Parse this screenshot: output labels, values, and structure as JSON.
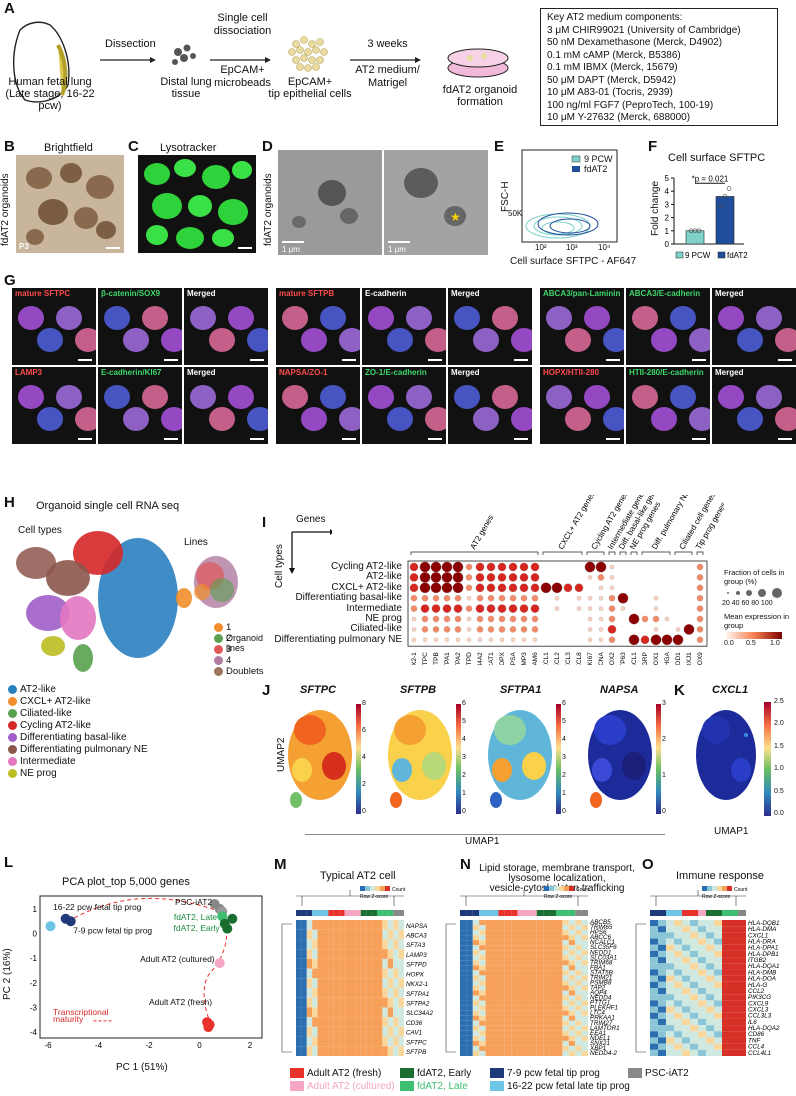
{
  "panels": {
    "A": "A",
    "B": "B",
    "C": "C",
    "D": "D",
    "E": "E",
    "F": "F",
    "G": "G",
    "H": "H",
    "I": "I",
    "J": "J",
    "K": "K",
    "L": "L",
    "M": "M",
    "N": "N",
    "O": "O"
  },
  "panelA": {
    "source_line1": "Human fetal lung",
    "source_line2": "(Late stage, 16-22 pcw)",
    "step1": "Dissection",
    "tissue": "Distal lung",
    "tissue2": "tissue",
    "step2_line1": "Single cell",
    "step2_line2": "dissociation",
    "step2_line3": "EpCAM+",
    "step2_line4": "microbeads",
    "cells_line1": "EpCAM+",
    "cells_line2": "tip epithelial cells",
    "step3_line1": "3 weeks",
    "step3_line2": "AT2 medium/",
    "step3_line3": "Matrigel",
    "result_line1": "fdAT2 organoid",
    "result_line2": "formation",
    "medium_title": "Key AT2 medium components:",
    "medium_items": [
      "3 μM CHIR99021 (University of Cambridge)",
      "50 nM Dexamethasone (Merck, D4902)",
      "0.1 mM cAMP (Merck, B5386)",
      "0.1 mM IBMX (Merck, 15679)",
      "50 μM DAPT (Merck, D5942)",
      "10 μM A83-01 (Tocris, 2939)",
      "100 ng/ml FGF7 (PeproTech, 100-19)",
      "10 μM Y-27632 (Merck, 688000)"
    ]
  },
  "panelB": {
    "title": "Brightfield",
    "ylabel": "fdAT2 organoids",
    "passage": "P3"
  },
  "panelC": {
    "title": "Lysotracker"
  },
  "panelD": {
    "ylabel": "fdAT2 organoids",
    "scale1": "1 μm",
    "scale2": "1 μm"
  },
  "panelE": {
    "ylabel": "FSC-H",
    "xlabel": "Cell surface SFTPC - AF647",
    "ytick": "50K",
    "xticks": [
      "10²",
      "10³",
      "10⁴"
    ],
    "legend": [
      "9 PCW",
      "fdAT2"
    ],
    "colors": [
      "#7fd1c9",
      "#1f4e9c"
    ]
  },
  "panelF": {
    "title": "Cell surface SFTPC",
    "pvalue": "*p = 0.021",
    "ylabel": "Fold change",
    "yticks": [
      "0",
      "1",
      "2",
      "3",
      "4",
      "5"
    ],
    "legend": [
      "9 PCW",
      "fdAT2"
    ]
  },
  "chart_data": {
    "type": "bar",
    "title": "Cell surface SFTPC",
    "ylabel": "Fold change",
    "categories": [
      "9 PCW",
      "fdAT2"
    ],
    "values": [
      1.0,
      3.6
    ],
    "ylim": [
      0,
      5
    ],
    "points": [
      [
        1.0,
        1.0,
        1.0
      ],
      [
        2.9,
        3.6,
        4.2
      ]
    ],
    "colors": [
      "#7fd1c9",
      "#1f4e9c"
    ]
  },
  "panelG": {
    "row1": [
      {
        "label": "mature SFTPC",
        "color": "#ff4b4b"
      },
      {
        "label": "β-catenin/SOX9",
        "color": "#3fd66b"
      },
      {
        "label": "Merged",
        "color": "#ffffff"
      },
      {
        "label": "mature SFTPB",
        "color": "#ff4b4b"
      },
      {
        "label": "E-cadherin",
        "color": "#ffffff"
      },
      {
        "label": "Merged",
        "color": "#ffffff"
      },
      {
        "label": "ABCA3/pan-Laminin",
        "color": "#3fd66b"
      },
      {
        "label": "ABCA3/E-cadherin",
        "color": "#3fd66b"
      },
      {
        "label": "Merged",
        "color": "#ffffff"
      }
    ],
    "row2": [
      {
        "label": "LAMP3",
        "color": "#ff4b4b"
      },
      {
        "label": "E-cadherin/KI67",
        "color": "#3fd66b"
      },
      {
        "label": "Merged",
        "color": "#ffffff"
      },
      {
        "label": "NAPSA/ZO-1",
        "color": "#ff4b4b"
      },
      {
        "label": "ZO-1/E-cadherin",
        "color": "#3fd66b"
      },
      {
        "label": "Merged",
        "color": "#ffffff"
      },
      {
        "label": "HOPX/HTII-280",
        "color": "#ff4b4b"
      },
      {
        "label": "HTII-280/E-cadherin",
        "color": "#3fd66b"
      },
      {
        "label": "Merged",
        "color": "#ffffff"
      }
    ]
  },
  "panelH": {
    "title": "Organoid single cell RNA seq",
    "cell_types_label": "Cell types",
    "lines_label": "Lines",
    "lines_legend_title": "Organoid lines",
    "lines": [
      {
        "name": "1",
        "color": "#f28e2b"
      },
      {
        "name": "2",
        "color": "#59a14f"
      },
      {
        "name": "3",
        "color": "#e15759"
      },
      {
        "name": "4",
        "color": "#b07aa1"
      },
      {
        "name": "Doublets",
        "color": "#9c755f"
      }
    ],
    "cell_types": [
      {
        "name": "AT2-like",
        "color": "#2a7fc1"
      },
      {
        "name": "CXCL+ AT2-like",
        "color": "#f28e2b"
      },
      {
        "name": "Ciliated-like",
        "color": "#59a14f"
      },
      {
        "name": "Cycling AT2-like",
        "color": "#d62728"
      },
      {
        "name": "Differentiating basal-like",
        "color": "#a05ec8"
      },
      {
        "name": "Differentiating pulmonary NE",
        "color": "#8c564b"
      },
      {
        "name": "Intermediate",
        "color": "#e377c2"
      },
      {
        "name": "NE prog",
        "color": "#bcbd22"
      }
    ]
  },
  "panelI": {
    "genes_label": "Genes",
    "celltypes_label": "Cell types",
    "rows": [
      "Cycling AT2-like",
      "AT2-like",
      "CXCL+ AT2-like",
      "Differentiating basal-like",
      "Intermediate",
      "NE prog",
      "Ciliated-like",
      "Differentiating pulmonary NE"
    ],
    "groups": [
      "AT2 genes",
      "CXCL+ AT2 genes",
      "Cycling AT2 genes",
      "Intermediate genes",
      "Diff. basal-like genes",
      "NE prog genes",
      "Diff. pulmonary NE genes",
      "Ciliated cell genes",
      "Tip prog genes"
    ],
    "genes": [
      "NKX2-1",
      "SFTPC",
      "SFTPB",
      "SFTPA1",
      "SFTPA2",
      "SFTPD",
      "SLC34A2",
      "LPCAT1",
      "HOPX",
      "NAPSA",
      "LAMP3",
      "CEACAM6",
      "CXCL1",
      "CXCL2",
      "CXCL3",
      "CXCL8",
      "MKI67",
      "PCNA",
      "SOX2",
      "TP63",
      "ASCL1",
      "GRP",
      "PROX1",
      "CHGA",
      "NEUROD1",
      "FOXJ1",
      "SOX9"
    ],
    "size_legend_title": "Fraction of cells in group (%)",
    "size_ticks": "20 40 60 80 100",
    "color_legend_title": "Mean expression in group",
    "color_ticks": [
      "0.0",
      "0.5",
      "1.0"
    ]
  },
  "panelJ": {
    "genes": [
      {
        "name": "SFTPC",
        "max": "8",
        "ticks": [
          "8",
          "6",
          "4",
          "2",
          "0"
        ]
      },
      {
        "name": "SFTPB",
        "max": "6",
        "ticks": [
          "6",
          "5",
          "4",
          "3",
          "2",
          "1",
          "0"
        ]
      },
      {
        "name": "SFTPA1",
        "max": "6",
        "ticks": [
          "6",
          "5",
          "4",
          "3",
          "2",
          "1",
          "0"
        ]
      },
      {
        "name": "NAPSA",
        "max": "3",
        "ticks": [
          "3",
          "2",
          "1",
          "0"
        ]
      }
    ],
    "ylabel": "UMAP2",
    "xlabel": "UMAP1"
  },
  "panelK": {
    "gene": "CXCL1",
    "ticks": [
      "2.5",
      "2.0",
      "1.5",
      "1.0",
      "0.5",
      "0.0"
    ],
    "xlabel": "UMAP1"
  },
  "panelL": {
    "title": "PCA plot_top 5,000 genes",
    "xlabel": "PC 1 (51%)",
    "ylabel": "PC 2 (16%)",
    "xticks": [
      "-6",
      "-4",
      "-2",
      "0",
      "2"
    ],
    "yticks": [
      "1",
      "0",
      "-1",
      "-2",
      "-3",
      "-4"
    ],
    "labels": {
      "late": "16-22 pcw fetal tip prog",
      "early": "7-9 pcw fetal tip prog",
      "psc": "PSC-iAT2",
      "fdlate": "fdAT2, Late",
      "fdearly": "fdAT2, Early",
      "cultured": "Adult AT2 (cultured)",
      "fresh": "Adult AT2 (fresh)",
      "maturity1": "Transcriptional",
      "maturity2": "maturity"
    }
  },
  "panelM": {
    "title": "Typical AT2 cell",
    "count_label": "Count",
    "zlabel": "Row Z-score",
    "genes": [
      "NAPSA",
      "ABCA3",
      "SFTA3",
      "LAMP3",
      "SFTPD",
      "HOPX",
      "NKX2-1",
      "SFTPA1",
      "SFTPA2",
      "SLC34A2",
      "CD36",
      "CAV1",
      "SFTPC",
      "SFTPB"
    ]
  },
  "panelN": {
    "title_line1": "Lipid storage, membrane transport,",
    "title_line2": "lysosome localization,",
    "title_line3": "vesicle-cytoskeleton trafficking",
    "count_label": "Count",
    "zlabel": "Row Z-score",
    "genes": [
      "ABCB5",
      "TRIM65",
      "HPS6",
      "ABCC6",
      "NCALC1",
      "SLC35F6",
      "NEDD1",
      "SLC03A1",
      "TRIM68",
      "FBA1",
      "STAT5B",
      "TRIM21",
      "PSMB8",
      "TAP2",
      "AQP4",
      "NEDD4",
      "PTTG1",
      "PLEKHF1",
      "LTC4",
      "PRKAA1",
      "TRIM27",
      "LAMTOR1",
      "EEA1",
      "NDEL1",
      "SNX21",
      "XBP1",
      "NEDD4-2"
    ]
  },
  "panelO": {
    "title": "Immune response",
    "count_label": "Count",
    "zlabel": "Row Z-score",
    "genes": [
      "HLA-DQB1",
      "HLA-DMA",
      "CXCL1",
      "HLA-DRA",
      "HLA-DPA1",
      "HLA-DPB1",
      "ITGB2",
      "HLA-DQA1",
      "HLA-DMB",
      "HLA-DOA",
      "HLA-G",
      "CCL2",
      "PIK3CG",
      "CXCL9",
      "CXCL3",
      "CCL3L3",
      "IL6",
      "HLA-DQA2",
      "CD86",
      "TNF",
      "CCL4",
      "CCL4L1"
    ]
  },
  "bottom_legend": [
    {
      "name": "Adult AT2 (fresh)",
      "color": "#e8312a"
    },
    {
      "name": "fdAT2, Early",
      "color": "#1a6e30"
    },
    {
      "name": "7-9 pcw fetal tip prog",
      "color": "#1f3a7a"
    },
    {
      "name": "PSC-iAT2",
      "color": "#888888"
    },
    {
      "name": "Adult AT2 (cultured)",
      "color": "#f4a6c4"
    },
    {
      "name": "fdAT2, Late",
      "color": "#3cc070"
    },
    {
      "name": "16-22 pcw fetal late tip prog",
      "color": "#6ec6e6"
    }
  ]
}
